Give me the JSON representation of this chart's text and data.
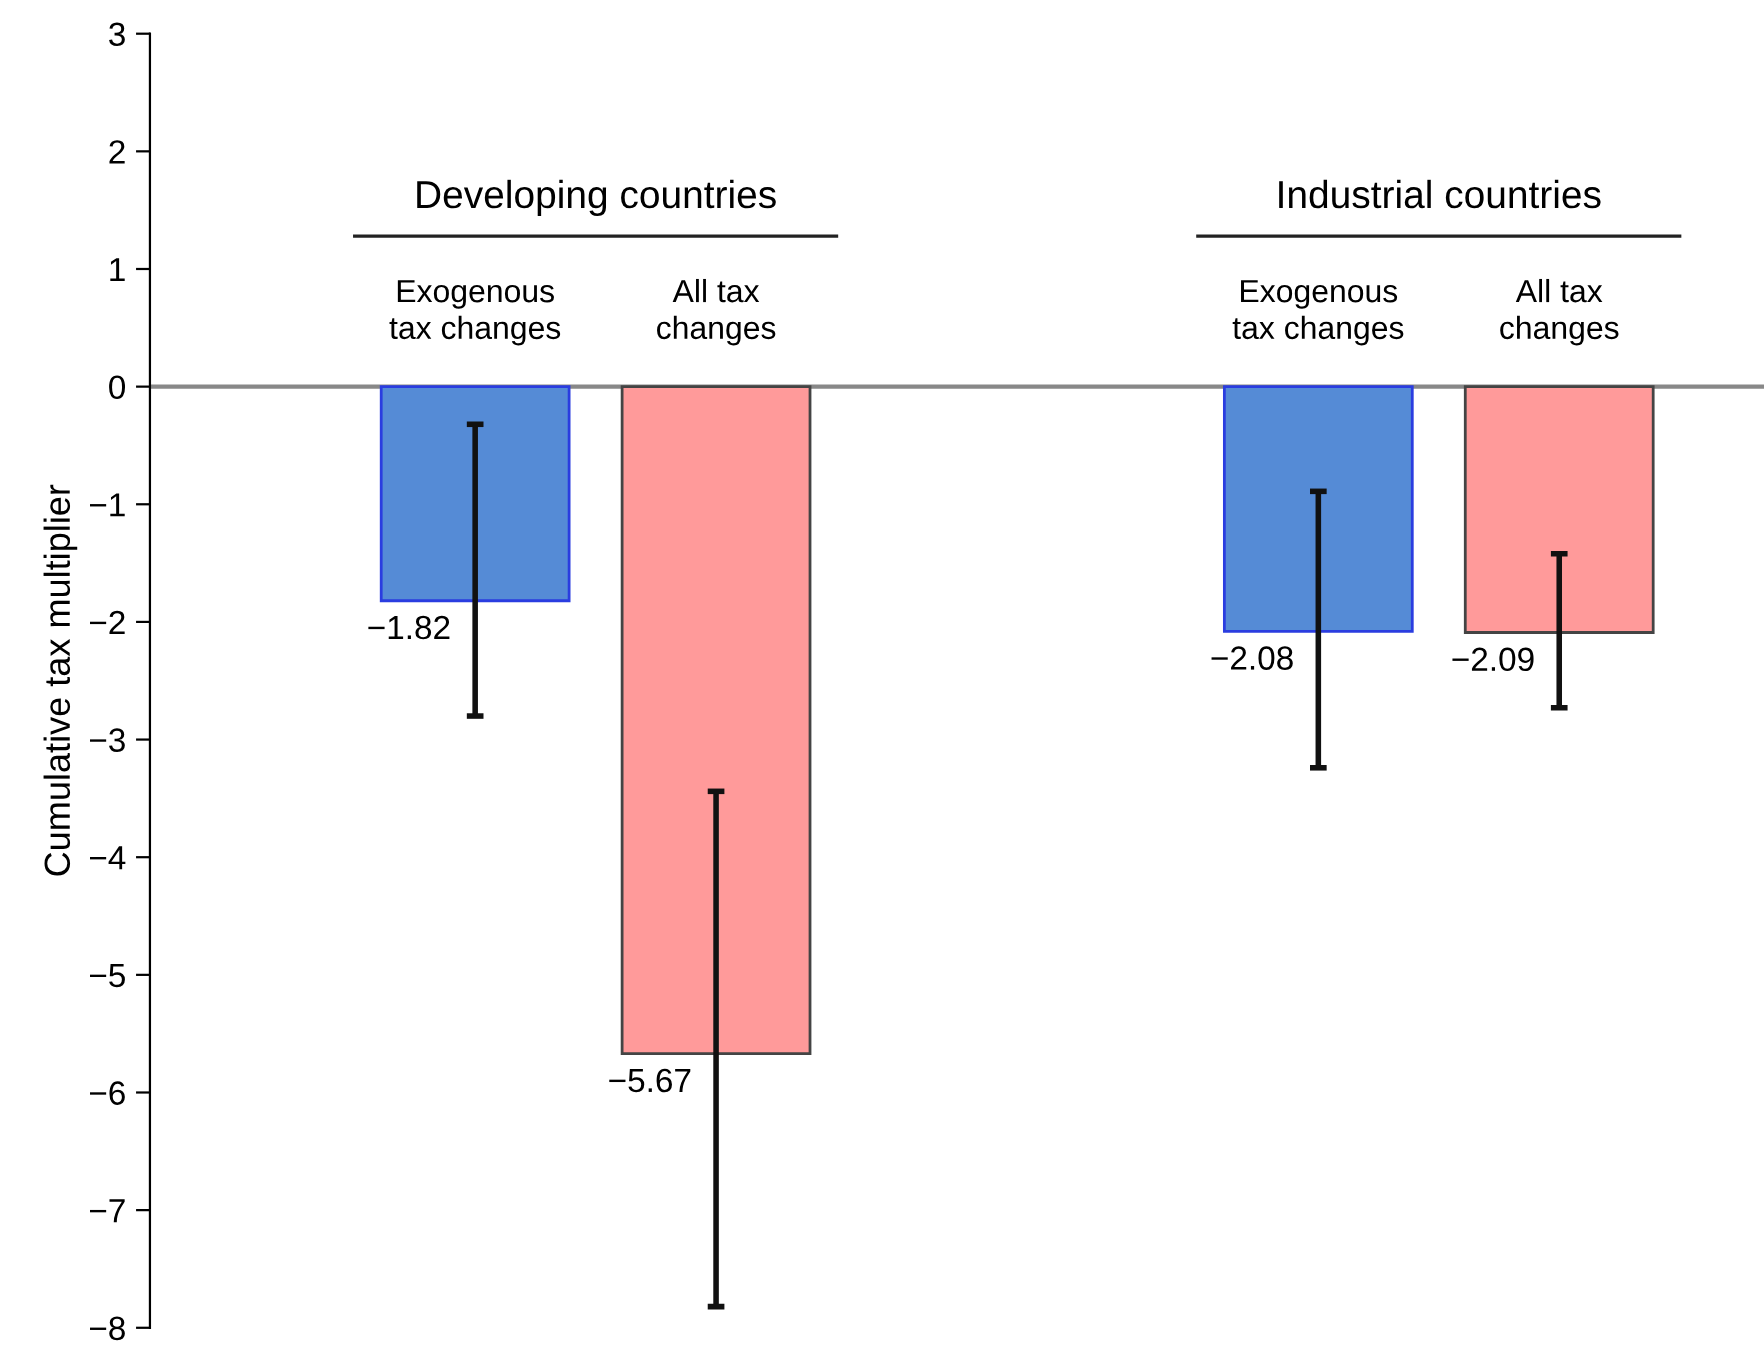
{
  "chart_data": {
    "type": "bar",
    "ylabel": "Cumulative tax multiplier",
    "categories": [
      "Exogenous\ntax changes",
      "All tax\nchanges",
      "Exogenous\ntax changes",
      "All tax\nchanges"
    ],
    "values": [
      -1.82,
      -5.67,
      -2.08,
      -2.09
    ],
    "colors": [
      "#558bd6",
      "#ff9a9a",
      "#558bd6",
      "#ff9a9a"
    ],
    "errors": [
      [
        -2.8,
        -0.32
      ],
      [
        -7.82,
        -3.44
      ],
      [
        -3.24,
        -0.89
      ],
      [
        -2.73,
        -1.42
      ]
    ],
    "value_labels": [
      "−1.82",
      "−5.67",
      "−2.08",
      "−2.09"
    ],
    "annotations": [
      "Developing countries",
      "Industrial countries"
    ],
    "ylim": [
      -8,
      3
    ],
    "yticks": [
      {
        "value": -8,
        "label": "−8"
      },
      {
        "value": -7,
        "label": "−7"
      },
      {
        "value": -6,
        "label": "−6"
      },
      {
        "value": -5,
        "label": "−5"
      },
      {
        "value": -4,
        "label": "−4"
      },
      {
        "value": -3,
        "label": "−3"
      },
      {
        "value": -2,
        "label": "−2"
      },
      {
        "value": -1,
        "label": "−1"
      },
      0,
      1,
      2,
      3
    ],
    "tick_labels": "y",
    "grid": false,
    "legend": false
  }
}
